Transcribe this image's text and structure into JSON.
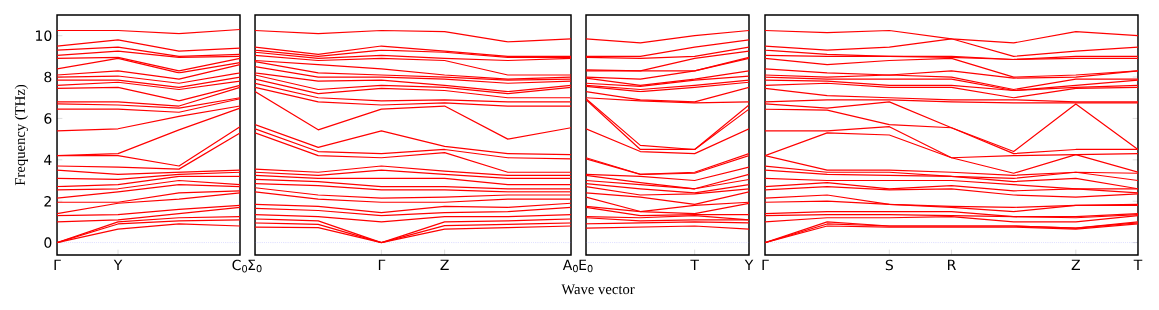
{
  "chart_data": [
    {
      "type": "line",
      "color": "#ff0000",
      "ylabel": "Frequency (THz)",
      "categories": [
        "Γ",
        "Y",
        null,
        "C$_{0}$"
      ],
      "ylim": [
        -0.6,
        11
      ],
      "yticks": [
        0,
        2,
        4,
        6,
        8,
        10
      ],
      "ref_lines": [
        {
          "axis": "y",
          "value": 0,
          "color": "#6f6fff",
          "line_style": "dotted"
        }
      ],
      "series": [
        {
          "values": [
            10.25,
            10.25,
            10.1,
            10.3
          ]
        },
        {
          "values": [
            9.5,
            9.8,
            9.25,
            9.4
          ]
        },
        {
          "values": [
            9.3,
            9.45,
            9.0,
            9.1
          ]
        },
        {
          "values": [
            9.05,
            9.25,
            8.95,
            9.0
          ]
        },
        {
          "values": [
            8.9,
            8.95,
            8.3,
            8.9
          ]
        },
        {
          "values": [
            8.4,
            8.9,
            8.2,
            8.7
          ]
        },
        {
          "values": [
            8.1,
            8.3,
            7.9,
            8.6
          ]
        },
        {
          "values": [
            8.0,
            8.05,
            7.7,
            8.2
          ]
        },
        {
          "values": [
            7.85,
            7.85,
            7.5,
            8.0
          ]
        },
        {
          "values": [
            7.6,
            7.75,
            7.4,
            7.8
          ]
        },
        {
          "values": [
            7.45,
            7.5,
            6.85,
            7.6
          ]
        },
        {
          "values": [
            6.8,
            6.8,
            6.6,
            7.5
          ]
        },
        {
          "values": [
            6.7,
            6.65,
            6.5,
            7.0
          ]
        },
        {
          "values": [
            6.45,
            6.45,
            6.3,
            6.95
          ]
        },
        {
          "values": [
            5.4,
            5.5,
            6.1,
            6.6
          ]
        },
        {
          "values": [
            4.2,
            4.3,
            5.45,
            6.5
          ]
        },
        {
          "values": [
            4.2,
            4.2,
            3.7,
            5.6
          ]
        },
        {
          "values": [
            3.7,
            3.65,
            3.55,
            5.3
          ]
        },
        {
          "values": [
            3.5,
            3.3,
            3.4,
            3.5
          ]
        },
        {
          "values": [
            3.1,
            3.05,
            3.3,
            3.4
          ]
        },
        {
          "values": [
            2.7,
            2.8,
            3.2,
            3.2
          ]
        },
        {
          "values": [
            2.55,
            2.6,
            3.0,
            2.8
          ]
        },
        {
          "values": [
            2.15,
            2.45,
            2.8,
            2.7
          ]
        },
        {
          "values": [
            1.95,
            1.95,
            2.4,
            2.5
          ]
        },
        {
          "values": [
            1.4,
            1.9,
            2.1,
            2.4
          ]
        },
        {
          "values": [
            1.3,
            1.35,
            1.6,
            1.8
          ]
        },
        {
          "values": [
            1.0,
            1.1,
            1.4,
            1.7
          ]
        },
        {
          "values": [
            0,
            1.0,
            1.2,
            1.25
          ]
        },
        {
          "values": [
            0,
            0.9,
            1.05,
            1.1
          ]
        },
        {
          "values": [
            0,
            0.65,
            0.9,
            0.8
          ]
        }
      ]
    },
    {
      "type": "line",
      "color": "#ff0000",
      "xlabel": "Wave vector",
      "tick_labels": "x",
      "categories": [
        "Σ$_{0}$",
        null,
        "Γ",
        "Z",
        null,
        "A$_{0}$"
      ],
      "ylim": [
        -0.6,
        11
      ],
      "yticks": [
        0,
        2,
        4,
        6,
        8,
        10
      ],
      "ref_lines": [
        {
          "axis": "y",
          "value": 0,
          "color": "#6f6fff",
          "line_style": "dotted"
        }
      ],
      "series": [
        {
          "values": [
            10.25,
            10.1,
            10.25,
            10.2,
            9.7,
            9.85
          ]
        },
        {
          "values": [
            9.45,
            9.1,
            9.5,
            9.25,
            9.0,
            9.0
          ]
        },
        {
          "values": [
            9.3,
            9.0,
            9.3,
            9.2,
            8.95,
            8.95
          ]
        },
        {
          "values": [
            9.2,
            8.9,
            9.05,
            8.9,
            8.8,
            8.9
          ]
        },
        {
          "values": [
            9.05,
            8.8,
            8.9,
            8.8,
            8.1,
            8.1
          ]
        },
        {
          "values": [
            8.8,
            8.6,
            8.4,
            8.1,
            7.9,
            8.0
          ]
        },
        {
          "values": [
            8.75,
            8.2,
            8.1,
            8.0,
            7.85,
            7.9
          ]
        },
        {
          "values": [
            8.5,
            8.0,
            8.0,
            7.9,
            7.7,
            7.8
          ]
        },
        {
          "values": [
            8.2,
            7.8,
            7.85,
            7.6,
            7.3,
            7.6
          ]
        },
        {
          "values": [
            8.1,
            7.4,
            7.6,
            7.5,
            7.2,
            7.5
          ]
        },
        {
          "values": [
            7.9,
            7.2,
            7.45,
            7.35,
            7.0,
            7.0
          ]
        },
        {
          "values": [
            7.7,
            7.0,
            6.85,
            6.9,
            6.8,
            6.8
          ]
        },
        {
          "values": [
            7.5,
            6.8,
            6.65,
            6.75,
            6.6,
            6.6
          ]
        },
        {
          "values": [
            7.3,
            5.45,
            6.45,
            6.6,
            5.0,
            5.55
          ]
        },
        {
          "values": [
            5.7,
            4.6,
            5.4,
            4.65,
            4.3,
            4.25
          ]
        },
        {
          "values": [
            5.5,
            4.4,
            4.3,
            4.5,
            4.1,
            4.05
          ]
        },
        {
          "values": [
            5.3,
            4.2,
            4.1,
            4.35,
            3.4,
            3.4
          ]
        },
        {
          "values": [
            3.55,
            3.4,
            3.7,
            3.45,
            3.25,
            3.25
          ]
        },
        {
          "values": [
            3.4,
            3.25,
            3.5,
            3.3,
            3.1,
            3.1
          ]
        },
        {
          "values": [
            3.25,
            3.1,
            3.1,
            3.1,
            2.8,
            2.8
          ]
        },
        {
          "values": [
            3.05,
            2.95,
            2.7,
            2.7,
            2.6,
            2.6
          ]
        },
        {
          "values": [
            2.85,
            2.75,
            2.55,
            2.55,
            2.45,
            2.45
          ]
        },
        {
          "values": [
            2.65,
            2.3,
            2.15,
            2.2,
            2.3,
            2.3
          ]
        },
        {
          "values": [
            2.45,
            2.1,
            1.95,
            1.95,
            2.1,
            2.1
          ]
        },
        {
          "values": [
            1.85,
            1.75,
            1.45,
            1.75,
            1.7,
            1.9
          ]
        },
        {
          "values": [
            1.65,
            1.55,
            1.3,
            1.45,
            1.5,
            1.7
          ]
        },
        {
          "values": [
            1.35,
            1.25,
            1.0,
            1.25,
            1.25,
            1.35
          ]
        },
        {
          "values": [
            1.15,
            1.05,
            0,
            1.0,
            1.05,
            1.15
          ]
        },
        {
          "values": [
            0.95,
            0.88,
            0,
            0.82,
            0.88,
            0.95
          ]
        },
        {
          "values": [
            0.75,
            0.72,
            0,
            0.65,
            0.72,
            0.8
          ]
        }
      ]
    },
    {
      "type": "line",
      "color": "#ff0000",
      "tick_labels": "x",
      "categories": [
        "E$_{0}$",
        null,
        "T",
        "Y"
      ],
      "ylim": [
        -0.6,
        11
      ],
      "yticks": [
        0,
        2,
        4,
        6,
        8,
        10
      ],
      "ref_lines": [
        {
          "axis": "y",
          "value": 0,
          "color": "#6f6fff",
          "line_style": "dotted"
        }
      ],
      "series": [
        {
          "values": [
            9.85,
            9.65,
            10.0,
            10.25
          ]
        },
        {
          "values": [
            9.0,
            9.0,
            9.45,
            9.8
          ]
        },
        {
          "values": [
            8.95,
            8.9,
            9.0,
            9.45
          ]
        },
        {
          "values": [
            8.35,
            8.3,
            8.9,
            9.25
          ]
        },
        {
          "values": [
            8.3,
            8.3,
            8.3,
            8.95
          ]
        },
        {
          "values": [
            8.0,
            7.9,
            8.3,
            8.9
          ]
        },
        {
          "values": [
            7.95,
            7.6,
            7.9,
            8.3
          ]
        },
        {
          "values": [
            7.7,
            7.55,
            7.85,
            8.05
          ]
        },
        {
          "values": [
            7.6,
            7.4,
            7.6,
            7.85
          ]
        },
        {
          "values": [
            7.55,
            7.3,
            7.5,
            7.75
          ]
        },
        {
          "values": [
            7.3,
            6.9,
            6.8,
            7.5
          ]
        },
        {
          "values": [
            7.0,
            6.85,
            6.75,
            6.8
          ]
        },
        {
          "values": [
            6.95,
            4.7,
            4.5,
            6.65
          ]
        },
        {
          "values": [
            6.9,
            4.5,
            4.5,
            6.45
          ]
        },
        {
          "values": [
            5.5,
            4.4,
            4.3,
            5.5
          ]
        },
        {
          "values": [
            4.1,
            3.3,
            3.4,
            4.3
          ]
        },
        {
          "values": [
            4.05,
            3.3,
            3.35,
            4.2
          ]
        },
        {
          "values": [
            3.3,
            3.2,
            3.0,
            3.65
          ]
        },
        {
          "values": [
            3.25,
            2.9,
            2.6,
            3.3
          ]
        },
        {
          "values": [
            3.0,
            2.8,
            2.6,
            3.05
          ]
        },
        {
          "values": [
            2.85,
            2.6,
            2.4,
            2.8
          ]
        },
        {
          "values": [
            2.7,
            2.3,
            2.35,
            2.6
          ]
        },
        {
          "values": [
            2.4,
            2.2,
            1.85,
            2.45
          ]
        },
        {
          "values": [
            2.2,
            1.5,
            1.8,
            1.95
          ]
        },
        {
          "values": [
            1.75,
            1.5,
            1.4,
            1.9
          ]
        },
        {
          "values": [
            1.7,
            1.3,
            1.35,
            1.35
          ]
        },
        {
          "values": [
            1.25,
            1.2,
            1.3,
            1.1
          ]
        },
        {
          "values": [
            1.2,
            1.05,
            1.1,
            1.1
          ]
        },
        {
          "values": [
            0.9,
            0.95,
            1.0,
            0.95
          ]
        },
        {
          "values": [
            0.7,
            0.75,
            0.8,
            0.65
          ]
        }
      ]
    },
    {
      "type": "line",
      "color": "#ff0000",
      "tick_labels": "x",
      "categories": [
        "Γ",
        null,
        "S",
        "R",
        null,
        "Z",
        "T"
      ],
      "ylim": [
        -0.6,
        11
      ],
      "yticks": [
        0,
        2,
        4,
        6,
        8,
        10
      ],
      "ref_lines": [
        {
          "axis": "y",
          "value": 0,
          "color": "#6f6fff",
          "line_style": "dotted"
        }
      ],
      "series": [
        {
          "values": [
            10.25,
            10.15,
            10.25,
            9.85,
            9.65,
            10.2,
            10.0
          ]
        },
        {
          "values": [
            9.5,
            9.3,
            9.45,
            9.85,
            9.0,
            9.25,
            9.45
          ]
        },
        {
          "values": [
            9.3,
            9.1,
            9.0,
            9.0,
            8.85,
            9.0,
            9.0
          ]
        },
        {
          "values": [
            9.05,
            9.0,
            9.0,
            8.95,
            8.85,
            8.9,
            8.9
          ]
        },
        {
          "values": [
            8.9,
            8.6,
            8.8,
            8.9,
            8.0,
            8.1,
            8.3
          ]
        },
        {
          "values": [
            8.4,
            8.2,
            8.1,
            8.3,
            7.95,
            8.0,
            8.3
          ]
        },
        {
          "values": [
            8.1,
            8.0,
            8.1,
            8.0,
            7.4,
            7.9,
            7.9
          ]
        },
        {
          "values": [
            8.0,
            7.9,
            7.9,
            7.9,
            7.35,
            7.6,
            7.85
          ]
        },
        {
          "values": [
            7.85,
            7.8,
            7.6,
            7.6,
            7.35,
            7.5,
            7.6
          ]
        },
        {
          "values": [
            7.6,
            7.7,
            7.5,
            7.5,
            7.0,
            7.45,
            7.5
          ]
        },
        {
          "values": [
            7.45,
            7.1,
            7.0,
            6.9,
            6.9,
            6.8,
            6.8
          ]
        },
        {
          "values": [
            6.8,
            6.9,
            6.9,
            6.8,
            6.75,
            6.75,
            6.75
          ]
        },
        {
          "values": [
            6.7,
            6.5,
            6.8,
            5.55,
            4.4,
            6.7,
            4.5
          ]
        },
        {
          "values": [
            6.45,
            6.4,
            5.7,
            5.55,
            4.3,
            4.5,
            4.5
          ]
        },
        {
          "values": [
            5.4,
            5.4,
            5.6,
            4.1,
            4.2,
            4.25,
            4.3
          ]
        },
        {
          "values": [
            4.2,
            5.3,
            5.2,
            4.1,
            3.35,
            4.25,
            3.4
          ]
        },
        {
          "values": [
            4.2,
            3.5,
            3.5,
            3.4,
            3.25,
            3.4,
            3.35
          ]
        },
        {
          "values": [
            3.7,
            3.4,
            3.4,
            3.2,
            3.1,
            3.4,
            3.0
          ]
        },
        {
          "values": [
            3.5,
            3.3,
            3.25,
            3.2,
            2.95,
            3.1,
            2.6
          ]
        },
        {
          "values": [
            3.1,
            3.0,
            3.0,
            3.0,
            2.8,
            2.6,
            2.6
          ]
        },
        {
          "values": [
            2.7,
            2.9,
            2.6,
            2.75,
            2.5,
            2.6,
            2.4
          ]
        },
        {
          "values": [
            2.55,
            2.7,
            2.55,
            2.6,
            2.3,
            2.2,
            2.35
          ]
        },
        {
          "values": [
            2.15,
            2.3,
            1.85,
            1.75,
            1.7,
            1.8,
            1.85
          ]
        },
        {
          "values": [
            1.95,
            2.0,
            1.85,
            1.7,
            1.5,
            1.8,
            1.8
          ]
        },
        {
          "values": [
            1.4,
            1.5,
            1.5,
            1.5,
            1.25,
            1.25,
            1.4
          ]
        },
        {
          "values": [
            1.3,
            1.35,
            1.35,
            1.3,
            1.25,
            1.2,
            1.35
          ]
        },
        {
          "values": [
            1.0,
            1.2,
            1.2,
            1.25,
            1.0,
            1.0,
            1.3
          ]
        },
        {
          "values": [
            0,
            1.0,
            0.8,
            0.8,
            0.8,
            0.7,
            1.0
          ]
        },
        {
          "values": [
            0,
            0.9,
            0.8,
            0.8,
            0.8,
            0.7,
            0.95
          ]
        },
        {
          "values": [
            0,
            0.8,
            0.75,
            0.75,
            0.75,
            0.65,
            0.9
          ]
        }
      ]
    }
  ]
}
